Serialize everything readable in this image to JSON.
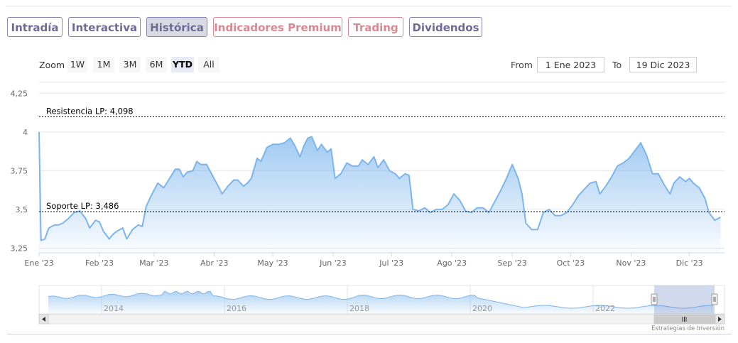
{
  "tabs": [
    {
      "label": "Intradía",
      "style": "purple",
      "active": false
    },
    {
      "label": "Interactiva",
      "style": "purple",
      "active": false
    },
    {
      "label": "Histórica",
      "style": "purple",
      "active": true
    },
    {
      "label": "Indicadores Premium",
      "style": "red",
      "active": false
    },
    {
      "label": "Trading",
      "style": "red",
      "active": false
    },
    {
      "label": "Dividendos",
      "style": "purple",
      "active": false
    }
  ],
  "range_selector": {
    "zoom_label": "Zoom",
    "buttons": [
      {
        "label": "1W",
        "active": false
      },
      {
        "label": "1M",
        "active": false
      },
      {
        "label": "3M",
        "active": false
      },
      {
        "label": "6M",
        "active": false
      },
      {
        "label": "YTD",
        "active": true
      },
      {
        "label": "All",
        "active": false
      }
    ],
    "from_label": "From",
    "from_value": "1 Ene 2023",
    "to_label": "To",
    "to_value": "19 Dic 2023"
  },
  "credit": "Estrategias de Inversión",
  "colors": {
    "line": "#7cb5ec",
    "tab_purple": "#6e6a94",
    "tab_red": "#d98892"
  },
  "chart_data": {
    "type": "area",
    "title": "",
    "xlabel": "",
    "ylabel": "",
    "ylim": [
      3.22,
      4.32
    ],
    "yticks": [
      3.25,
      3.5,
      3.75,
      4,
      4.25
    ],
    "ytick_labels": [
      "3,25",
      "3,5",
      "3,75",
      "4",
      "4,25"
    ],
    "xticks": [
      "2023-01-01",
      "2023-02-01",
      "2023-03-01",
      "2023-04-01",
      "2023-05-01",
      "2023-06-01",
      "2023-07-01",
      "2023-08-01",
      "2023-09-01",
      "2023-10-01",
      "2023-11-01",
      "2023-12-01"
    ],
    "xtick_labels": [
      "Ene '23",
      "Feb '23",
      "Mar '23",
      "Abr '23",
      "May '23",
      "Jun '23",
      "Jul '23",
      "Ago '23",
      "Sep '23",
      "Oct '23",
      "Nov '23",
      "Dic '23"
    ],
    "xlim": [
      "2023-01-01",
      "2023-12-19"
    ],
    "grid": true,
    "legend": "none",
    "plot_lines": [
      {
        "label": "Resistencia LP: 4,098",
        "value": 4.098
      },
      {
        "label": "Soporte LP: 3,486",
        "value": 3.486
      }
    ],
    "series": [
      {
        "points": [
          [
            "2023-01-01",
            4.0
          ],
          [
            "2023-01-02",
            3.3
          ],
          [
            "2023-01-04",
            3.31
          ],
          [
            "2023-01-06",
            3.38
          ],
          [
            "2023-01-09",
            3.4
          ],
          [
            "2023-01-11",
            3.4
          ],
          [
            "2023-01-13",
            3.41
          ],
          [
            "2023-01-16",
            3.44
          ],
          [
            "2023-01-19",
            3.48
          ],
          [
            "2023-01-22",
            3.49
          ],
          [
            "2023-01-25",
            3.44
          ],
          [
            "2023-01-27",
            3.38
          ],
          [
            "2023-01-30",
            3.43
          ],
          [
            "2023-02-01",
            3.42
          ],
          [
            "2023-02-03",
            3.36
          ],
          [
            "2023-02-06",
            3.31
          ],
          [
            "2023-02-08",
            3.34
          ],
          [
            "2023-02-10",
            3.36
          ],
          [
            "2023-02-13",
            3.38
          ],
          [
            "2023-02-15",
            3.31
          ],
          [
            "2023-02-18",
            3.37
          ],
          [
            "2023-02-21",
            3.4
          ],
          [
            "2023-02-23",
            3.39
          ],
          [
            "2023-02-25",
            3.52
          ],
          [
            "2023-02-28",
            3.6
          ],
          [
            "2023-03-03",
            3.67
          ],
          [
            "2023-03-06",
            3.64
          ],
          [
            "2023-03-09",
            3.7
          ],
          [
            "2023-03-12",
            3.76
          ],
          [
            "2023-03-14",
            3.76
          ],
          [
            "2023-03-16",
            3.71
          ],
          [
            "2023-03-18",
            3.74
          ],
          [
            "2023-03-21",
            3.75
          ],
          [
            "2023-03-23",
            3.81
          ],
          [
            "2023-03-25",
            3.79
          ],
          [
            "2023-03-28",
            3.79
          ],
          [
            "2023-03-31",
            3.72
          ],
          [
            "2023-04-03",
            3.65
          ],
          [
            "2023-04-05",
            3.6
          ],
          [
            "2023-04-08",
            3.65
          ],
          [
            "2023-04-11",
            3.69
          ],
          [
            "2023-04-13",
            3.69
          ],
          [
            "2023-04-16",
            3.65
          ],
          [
            "2023-04-18",
            3.67
          ],
          [
            "2023-04-20",
            3.7
          ],
          [
            "2023-04-23",
            3.83
          ],
          [
            "2023-04-25",
            3.81
          ],
          [
            "2023-04-28",
            3.9
          ],
          [
            "2023-05-01",
            3.92
          ],
          [
            "2023-05-04",
            3.92
          ],
          [
            "2023-05-07",
            3.93
          ],
          [
            "2023-05-10",
            3.96
          ],
          [
            "2023-05-12",
            3.92
          ],
          [
            "2023-05-15",
            3.84
          ],
          [
            "2023-05-17",
            3.91
          ],
          [
            "2023-05-19",
            3.96
          ],
          [
            "2023-05-21",
            3.97
          ],
          [
            "2023-05-24",
            3.88
          ],
          [
            "2023-05-26",
            3.92
          ],
          [
            "2023-05-29",
            3.87
          ],
          [
            "2023-05-31",
            3.89
          ],
          [
            "2023-06-02",
            3.7
          ],
          [
            "2023-06-05",
            3.73
          ],
          [
            "2023-06-08",
            3.8
          ],
          [
            "2023-06-11",
            3.78
          ],
          [
            "2023-06-14",
            3.78
          ],
          [
            "2023-06-16",
            3.82
          ],
          [
            "2023-06-19",
            3.79
          ],
          [
            "2023-06-22",
            3.84
          ],
          [
            "2023-06-24",
            3.77
          ],
          [
            "2023-06-27",
            3.82
          ],
          [
            "2023-06-30",
            3.75
          ],
          [
            "2023-07-03",
            3.73
          ],
          [
            "2023-07-05",
            3.7
          ],
          [
            "2023-07-08",
            3.73
          ],
          [
            "2023-07-10",
            3.72
          ],
          [
            "2023-07-12",
            3.5
          ],
          [
            "2023-07-15",
            3.49
          ],
          [
            "2023-07-18",
            3.51
          ],
          [
            "2023-07-21",
            3.48
          ],
          [
            "2023-07-24",
            3.5
          ],
          [
            "2023-07-27",
            3.5
          ],
          [
            "2023-07-30",
            3.53
          ],
          [
            "2023-08-02",
            3.6
          ],
          [
            "2023-08-05",
            3.56
          ],
          [
            "2023-08-08",
            3.49
          ],
          [
            "2023-08-11",
            3.48
          ],
          [
            "2023-08-14",
            3.51
          ],
          [
            "2023-08-17",
            3.51
          ],
          [
            "2023-08-20",
            3.48
          ],
          [
            "2023-08-23",
            3.55
          ],
          [
            "2023-08-26",
            3.62
          ],
          [
            "2023-08-29",
            3.7
          ],
          [
            "2023-09-01",
            3.79
          ],
          [
            "2023-09-04",
            3.7
          ],
          [
            "2023-09-06",
            3.6
          ],
          [
            "2023-09-08",
            3.41
          ],
          [
            "2023-09-11",
            3.37
          ],
          [
            "2023-09-14",
            3.37
          ],
          [
            "2023-09-17",
            3.48
          ],
          [
            "2023-09-20",
            3.5
          ],
          [
            "2023-09-23",
            3.46
          ],
          [
            "2023-09-26",
            3.46
          ],
          [
            "2023-09-29",
            3.48
          ],
          [
            "2023-10-02",
            3.53
          ],
          [
            "2023-10-05",
            3.59
          ],
          [
            "2023-10-08",
            3.63
          ],
          [
            "2023-10-11",
            3.67
          ],
          [
            "2023-10-14",
            3.68
          ],
          [
            "2023-10-16",
            3.6
          ],
          [
            "2023-10-19",
            3.65
          ],
          [
            "2023-10-22",
            3.71
          ],
          [
            "2023-10-25",
            3.78
          ],
          [
            "2023-10-28",
            3.8
          ],
          [
            "2023-10-31",
            3.83
          ],
          [
            "2023-11-03",
            3.88
          ],
          [
            "2023-11-06",
            3.93
          ],
          [
            "2023-11-09",
            3.85
          ],
          [
            "2023-11-12",
            3.73
          ],
          [
            "2023-11-15",
            3.73
          ],
          [
            "2023-11-18",
            3.66
          ],
          [
            "2023-11-21",
            3.6
          ],
          [
            "2023-11-23",
            3.67
          ],
          [
            "2023-11-26",
            3.71
          ],
          [
            "2023-11-29",
            3.68
          ],
          [
            "2023-12-01",
            3.7
          ],
          [
            "2023-12-03",
            3.67
          ],
          [
            "2023-12-06",
            3.64
          ],
          [
            "2023-12-09",
            3.57
          ],
          [
            "2023-12-11",
            3.48
          ],
          [
            "2023-12-14",
            3.43
          ],
          [
            "2023-12-17",
            3.45
          ]
        ]
      }
    ]
  },
  "navigator": {
    "tick_labels": [
      "2014",
      "2016",
      "2018",
      "2020",
      "2022"
    ]
  }
}
